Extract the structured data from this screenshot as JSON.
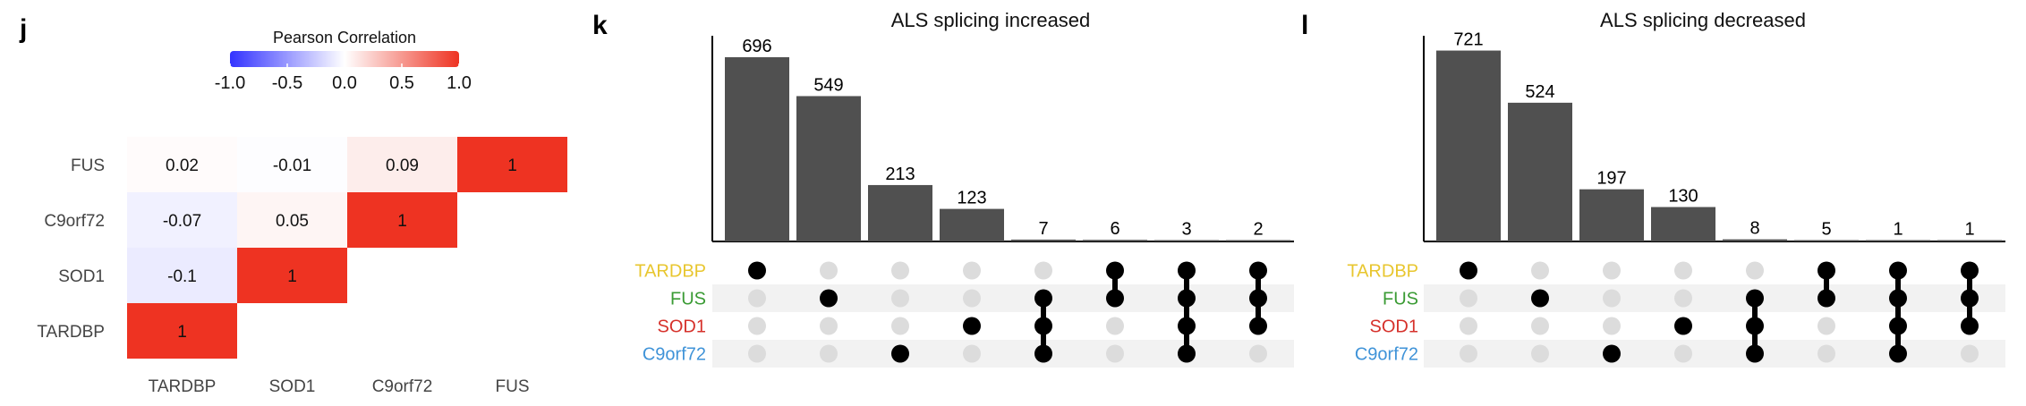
{
  "panels": {
    "j": {
      "letter": "j",
      "legend_title": "Pearson Correlation",
      "legend_ticks": [
        "-1.0",
        "-0.5",
        "0.0",
        "0.5",
        "1.0"
      ],
      "colors": {
        "low": "#3333ff",
        "mid": "#ffffff",
        "high": "#ee3322"
      }
    },
    "k": {
      "letter": "k",
      "title": "ALS splicing increased"
    },
    "l": {
      "letter": "l",
      "title": "ALS splicing decreased"
    }
  },
  "set_colors": {
    "TARDBP": "#e8c62e",
    "FUS": "#3a9b34",
    "SOD1": "#d6312b",
    "C9orf72": "#3f93d8"
  },
  "chart_data": [
    {
      "panel": "j",
      "type": "heatmap",
      "title": "",
      "legend_title": "Pearson Correlation",
      "value_range": [
        -1.0,
        1.0
      ],
      "rows": [
        "FUS",
        "C9orf72",
        "SOD1",
        "TARDBP"
      ],
      "columns": [
        "TARDBP",
        "SOD1",
        "C9orf72",
        "FUS"
      ],
      "cells": [
        {
          "row": "TARDBP",
          "col": "TARDBP",
          "value": 1,
          "label": "1"
        },
        {
          "row": "SOD1",
          "col": "TARDBP",
          "value": -0.1,
          "label": "-0.1"
        },
        {
          "row": "SOD1",
          "col": "SOD1",
          "value": 1,
          "label": "1"
        },
        {
          "row": "C9orf72",
          "col": "TARDBP",
          "value": -0.07,
          "label": "-0.07"
        },
        {
          "row": "C9orf72",
          "col": "SOD1",
          "value": 0.05,
          "label": "0.05"
        },
        {
          "row": "C9orf72",
          "col": "C9orf72",
          "value": 1,
          "label": "1"
        },
        {
          "row": "FUS",
          "col": "TARDBP",
          "value": 0.02,
          "label": "0.02"
        },
        {
          "row": "FUS",
          "col": "SOD1",
          "value": -0.01,
          "label": "-0.01"
        },
        {
          "row": "FUS",
          "col": "C9orf72",
          "value": 0.09,
          "label": "0.09"
        },
        {
          "row": "FUS",
          "col": "FUS",
          "value": 1,
          "label": "1"
        }
      ]
    },
    {
      "panel": "k",
      "type": "bar",
      "subtype": "upset",
      "title": "ALS splicing increased",
      "sets": [
        "TARDBP",
        "FUS",
        "SOD1",
        "C9orf72"
      ],
      "ylim": [
        0,
        760
      ],
      "intersections": [
        {
          "sets": [
            "TARDBP"
          ],
          "value": 696
        },
        {
          "sets": [
            "FUS"
          ],
          "value": 549
        },
        {
          "sets": [
            "C9orf72"
          ],
          "value": 213
        },
        {
          "sets": [
            "SOD1"
          ],
          "value": 123
        },
        {
          "sets": [
            "FUS",
            "SOD1",
            "C9orf72"
          ],
          "value": 7
        },
        {
          "sets": [
            "TARDBP",
            "FUS"
          ],
          "value": 6
        },
        {
          "sets": [
            "TARDBP",
            "FUS",
            "SOD1",
            "C9orf72"
          ],
          "value": 3
        },
        {
          "sets": [
            "TARDBP",
            "FUS",
            "SOD1"
          ],
          "value": 2
        }
      ]
    },
    {
      "panel": "l",
      "type": "bar",
      "subtype": "upset",
      "title": "ALS splicing decreased",
      "sets": [
        "TARDBP",
        "FUS",
        "SOD1",
        "C9orf72"
      ],
      "ylim": [
        0,
        760
      ],
      "intersections": [
        {
          "sets": [
            "TARDBP"
          ],
          "value": 721
        },
        {
          "sets": [
            "FUS"
          ],
          "value": 524
        },
        {
          "sets": [
            "C9orf72"
          ],
          "value": 197
        },
        {
          "sets": [
            "SOD1"
          ],
          "value": 130
        },
        {
          "sets": [
            "FUS",
            "SOD1",
            "C9orf72"
          ],
          "value": 8
        },
        {
          "sets": [
            "TARDBP",
            "FUS"
          ],
          "value": 5
        },
        {
          "sets": [
            "TARDBP",
            "FUS",
            "SOD1",
            "C9orf72"
          ],
          "value": 1
        },
        {
          "sets": [
            "TARDBP",
            "FUS",
            "SOD1"
          ],
          "value": 1
        }
      ]
    }
  ]
}
